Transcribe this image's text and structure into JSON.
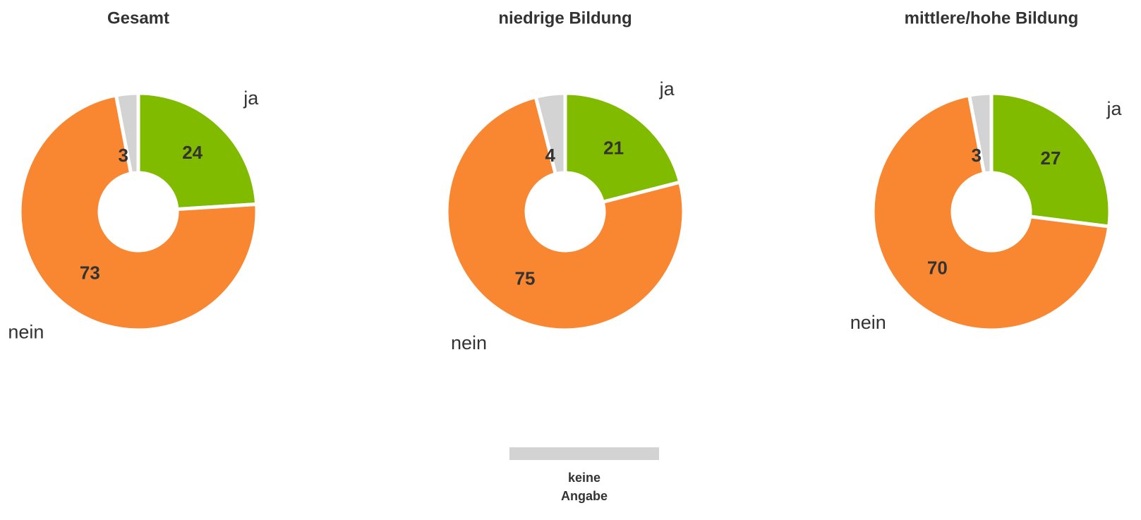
{
  "chart_data": [
    {
      "type": "donut",
      "title": "Gesamt",
      "categories": [
        "ja",
        "nein",
        null
      ],
      "values": [
        24,
        73,
        3
      ],
      "colors": [
        "#80bb00",
        "#f98732",
        "#d3d3d3"
      ]
    },
    {
      "type": "donut",
      "title": "niedrige Bildung",
      "categories": [
        "ja",
        "nein",
        null
      ],
      "values": [
        21,
        75,
        4
      ],
      "colors": [
        "#80bb00",
        "#f98732",
        "#d3d3d3"
      ]
    },
    {
      "type": "donut",
      "title": "mittlere/hohe Bildung",
      "categories": [
        "ja",
        "nein",
        null
      ],
      "values": [
        27,
        70,
        3
      ],
      "colors": [
        "#80bb00",
        "#f98732",
        "#d3d3d3"
      ]
    }
  ],
  "legend": [
    {
      "name": "keine Angabe",
      "color": "#d3d3d3"
    }
  ]
}
